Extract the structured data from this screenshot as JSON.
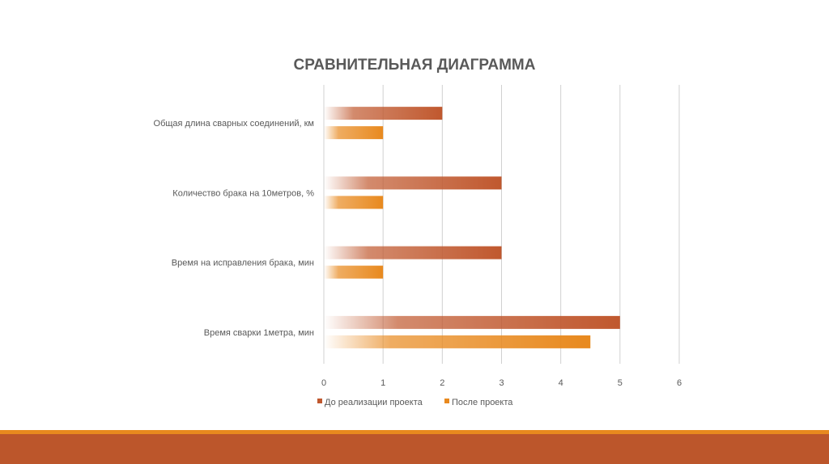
{
  "chart_data": {
    "type": "bar",
    "orientation": "horizontal",
    "title": "СРАВНИТЕЛЬНАЯ ДИАГРАММА",
    "categories": [
      "Общая длина сварных соединений, км",
      "Количество брака на 10метров, %",
      "Время на исправления брака, мин",
      "Время сварки 1метра, мин"
    ],
    "series": [
      {
        "name": "До реализации проекта",
        "values": [
          2,
          3,
          3,
          5
        ],
        "color": "#c0582e"
      },
      {
        "name": "После проекта",
        "values": [
          1,
          1,
          1,
          4.5
        ],
        "color": "#e8891e"
      }
    ],
    "xlim": [
      0,
      6
    ],
    "xticks": [
      "0",
      "1",
      "2",
      "3",
      "4",
      "5",
      "6"
    ],
    "grid": true,
    "legend": "bottom",
    "xlabel": "",
    "ylabel": ""
  }
}
